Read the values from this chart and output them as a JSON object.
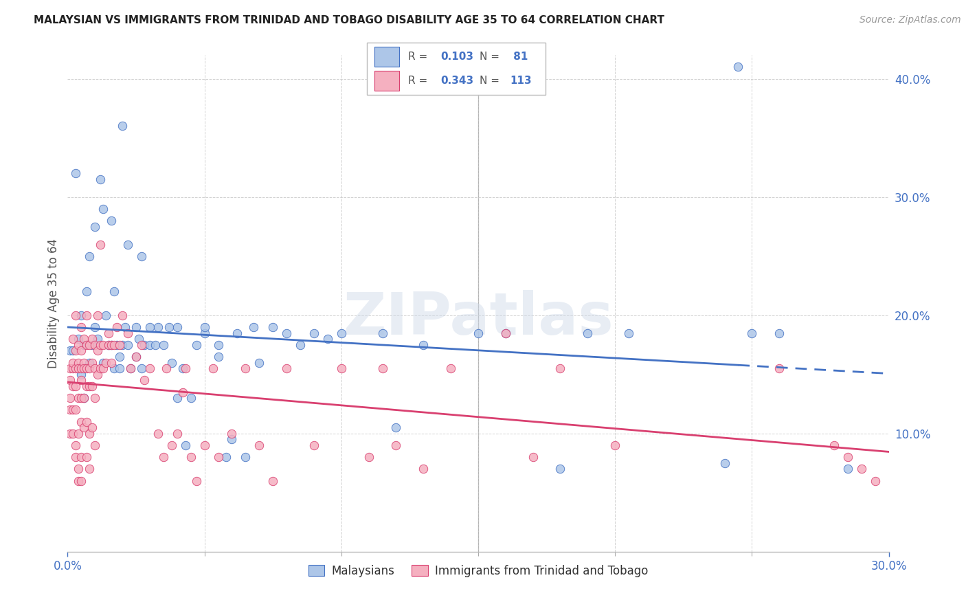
{
  "title": "MALAYSIAN VS IMMIGRANTS FROM TRINIDAD AND TOBAGO DISABILITY AGE 35 TO 64 CORRELATION CHART",
  "source": "Source: ZipAtlas.com",
  "ylabel": "Disability Age 35 to 64",
  "xmin": 0.0,
  "xmax": 0.3,
  "ymin": 0.0,
  "ymax": 0.42,
  "xtick_vals": [
    0.0,
    0.3
  ],
  "xtick_minor_vals": [
    0.05,
    0.1,
    0.15,
    0.2,
    0.25
  ],
  "ytick_vals": [
    0.1,
    0.2,
    0.3,
    0.4
  ],
  "ytick_minor_vals": [],
  "blue_R": 0.103,
  "blue_N": 81,
  "pink_R": 0.343,
  "pink_N": 113,
  "blue_face": "#adc6e8",
  "blue_edge": "#4472C4",
  "pink_face": "#f5b0c0",
  "pink_edge": "#d94070",
  "blue_line_color": "#4472C4",
  "pink_line_color": "#d94070",
  "legend_blue": "Malaysians",
  "legend_pink": "Immigrants from Trinidad and Tobago",
  "watermark": "ZIPatlas",
  "bg": "#ffffff",
  "grid_color": "#cccccc",
  "tick_color": "#4472C4",
  "title_color": "#222222",
  "ylabel_color": "#555555",
  "blue_scatter_x": [
    0.001,
    0.002,
    0.003,
    0.004,
    0.005,
    0.005,
    0.006,
    0.006,
    0.007,
    0.008,
    0.008,
    0.009,
    0.01,
    0.01,
    0.011,
    0.012,
    0.013,
    0.013,
    0.014,
    0.015,
    0.016,
    0.016,
    0.017,
    0.017,
    0.018,
    0.019,
    0.019,
    0.02,
    0.02,
    0.021,
    0.022,
    0.022,
    0.023,
    0.025,
    0.025,
    0.026,
    0.027,
    0.027,
    0.028,
    0.03,
    0.03,
    0.032,
    0.033,
    0.035,
    0.037,
    0.038,
    0.04,
    0.04,
    0.042,
    0.043,
    0.045,
    0.047,
    0.05,
    0.05,
    0.055,
    0.055,
    0.058,
    0.06,
    0.062,
    0.065,
    0.068,
    0.07,
    0.075,
    0.08,
    0.085,
    0.09,
    0.095,
    0.1,
    0.115,
    0.12,
    0.13,
    0.15,
    0.16,
    0.18,
    0.19,
    0.205,
    0.24,
    0.245,
    0.25,
    0.26,
    0.285
  ],
  "blue_scatter_y": [
    0.17,
    0.17,
    0.32,
    0.18,
    0.15,
    0.2,
    0.13,
    0.175,
    0.22,
    0.16,
    0.25,
    0.175,
    0.19,
    0.275,
    0.18,
    0.315,
    0.29,
    0.16,
    0.2,
    0.175,
    0.175,
    0.28,
    0.155,
    0.22,
    0.175,
    0.155,
    0.165,
    0.175,
    0.36,
    0.19,
    0.175,
    0.26,
    0.155,
    0.165,
    0.19,
    0.18,
    0.155,
    0.25,
    0.175,
    0.19,
    0.175,
    0.175,
    0.19,
    0.175,
    0.19,
    0.16,
    0.19,
    0.13,
    0.155,
    0.09,
    0.13,
    0.175,
    0.185,
    0.19,
    0.175,
    0.165,
    0.08,
    0.095,
    0.185,
    0.08,
    0.19,
    0.16,
    0.19,
    0.185,
    0.175,
    0.185,
    0.18,
    0.185,
    0.185,
    0.105,
    0.175,
    0.185,
    0.185,
    0.07,
    0.185,
    0.185,
    0.075,
    0.41,
    0.185,
    0.185,
    0.07
  ],
  "pink_scatter_x": [
    0.001,
    0.001,
    0.001,
    0.001,
    0.001,
    0.002,
    0.002,
    0.002,
    0.002,
    0.002,
    0.002,
    0.003,
    0.003,
    0.003,
    0.003,
    0.003,
    0.003,
    0.003,
    0.004,
    0.004,
    0.004,
    0.004,
    0.004,
    0.004,
    0.004,
    0.005,
    0.005,
    0.005,
    0.005,
    0.005,
    0.005,
    0.005,
    0.005,
    0.006,
    0.006,
    0.006,
    0.006,
    0.006,
    0.007,
    0.007,
    0.007,
    0.007,
    0.007,
    0.007,
    0.008,
    0.008,
    0.008,
    0.008,
    0.008,
    0.009,
    0.009,
    0.009,
    0.009,
    0.01,
    0.01,
    0.01,
    0.01,
    0.011,
    0.011,
    0.011,
    0.012,
    0.012,
    0.012,
    0.013,
    0.013,
    0.014,
    0.015,
    0.015,
    0.016,
    0.016,
    0.017,
    0.018,
    0.019,
    0.02,
    0.022,
    0.023,
    0.025,
    0.027,
    0.028,
    0.03,
    0.033,
    0.035,
    0.036,
    0.038,
    0.04,
    0.042,
    0.043,
    0.045,
    0.047,
    0.05,
    0.053,
    0.055,
    0.06,
    0.065,
    0.07,
    0.075,
    0.08,
    0.09,
    0.1,
    0.11,
    0.115,
    0.12,
    0.13,
    0.14,
    0.16,
    0.17,
    0.18,
    0.2,
    0.26,
    0.28,
    0.285,
    0.29,
    0.295
  ],
  "pink_scatter_y": [
    0.12,
    0.155,
    0.145,
    0.13,
    0.1,
    0.155,
    0.14,
    0.18,
    0.16,
    0.12,
    0.1,
    0.2,
    0.17,
    0.155,
    0.14,
    0.12,
    0.09,
    0.08,
    0.175,
    0.16,
    0.155,
    0.13,
    0.1,
    0.07,
    0.06,
    0.19,
    0.17,
    0.155,
    0.145,
    0.13,
    0.11,
    0.08,
    0.06,
    0.18,
    0.16,
    0.155,
    0.13,
    0.105,
    0.2,
    0.175,
    0.155,
    0.14,
    0.11,
    0.08,
    0.175,
    0.155,
    0.14,
    0.1,
    0.07,
    0.18,
    0.16,
    0.14,
    0.105,
    0.175,
    0.155,
    0.13,
    0.09,
    0.2,
    0.17,
    0.15,
    0.26,
    0.175,
    0.155,
    0.175,
    0.155,
    0.16,
    0.185,
    0.175,
    0.175,
    0.16,
    0.175,
    0.19,
    0.175,
    0.2,
    0.185,
    0.155,
    0.165,
    0.175,
    0.145,
    0.155,
    0.1,
    0.08,
    0.155,
    0.09,
    0.1,
    0.135,
    0.155,
    0.08,
    0.06,
    0.09,
    0.155,
    0.08,
    0.1,
    0.155,
    0.09,
    0.06,
    0.155,
    0.09,
    0.155,
    0.08,
    0.155,
    0.09,
    0.07,
    0.155,
    0.185,
    0.08,
    0.155,
    0.09,
    0.155,
    0.09,
    0.08,
    0.07,
    0.06
  ],
  "blue_line_solid_end": 0.245,
  "blue_line_dashed_start": 0.245,
  "blue_line_dashed_end": 0.3
}
